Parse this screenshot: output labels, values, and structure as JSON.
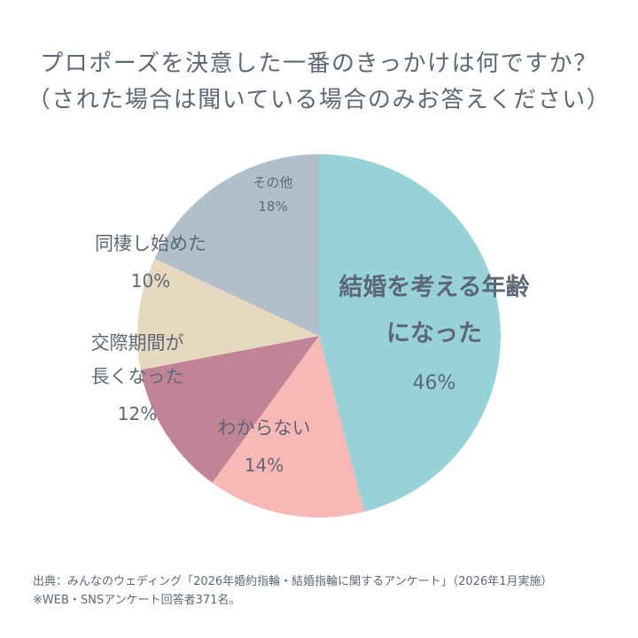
{
  "title": {
    "line1": "プロポーズを決意した一番のきっかけは何ですか？",
    "line2": "（された場合は聞いている場合のみお答えください）"
  },
  "chart_data": {
    "type": "pie",
    "start_angle_deg": 0,
    "direction": "clockwise",
    "slices": [
      {
        "label_lines": [
          "結婚を考える年齢",
          "になった"
        ],
        "percent_label": "46%",
        "value": 46,
        "color": "#98d2d9",
        "label_color": "#5d6877",
        "emphasis": true
      },
      {
        "label_lines": [
          "わからない"
        ],
        "percent_label": "14%",
        "value": 14,
        "color": "#f8b8b6",
        "label_color": "#5d6877",
        "emphasis": false
      },
      {
        "label_lines": [
          "交際期間が",
          "長くなった"
        ],
        "percent_label": "12%",
        "value": 12,
        "color": "#c08496",
        "label_color": "#5d6877",
        "emphasis": false
      },
      {
        "label_lines": [
          "同棲し始めた"
        ],
        "percent_label": "10%",
        "value": 10,
        "color": "#e5d8bf",
        "label_color": "#5d6877",
        "emphasis": false
      },
      {
        "label_lines": [
          "その他"
        ],
        "percent_label": "18%",
        "value": 18,
        "color": "#b1bfcb",
        "label_color": "#5d6877",
        "emphasis": false
      }
    ]
  },
  "footer": {
    "source": "出典：みんなのウェディング「2026年婚約指輪・結婚指輪に関するアンケート」（2026年1月実施）",
    "note": "※WEB・SNSアンケート回答者371名。"
  }
}
